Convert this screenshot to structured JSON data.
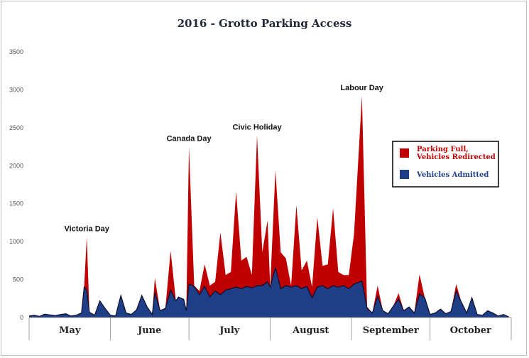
{
  "colors": {
    "full": "#C00000",
    "admitted": "#1F3E88",
    "outline": "#0c0c2a"
  },
  "chart_data": {
    "type": "area",
    "title": "2016 - Grotto Parking Access",
    "xlabel": "",
    "ylabel": "",
    "ylim": [
      0,
      3500
    ],
    "y_ticks": [
      0,
      500,
      1000,
      1500,
      2000,
      2500,
      3000,
      3500
    ],
    "grid": false,
    "legend_position": "right",
    "x_start": "2016-05-01",
    "x_end": "2016-10-31",
    "months": [
      "May",
      "June",
      "July",
      "August",
      "September",
      "October"
    ],
    "series": [
      {
        "name": "Vehicles Admitted",
        "color": "#1F3E88",
        "points": [
          [
            "2016-05-01",
            20
          ],
          [
            "2016-05-03",
            30
          ],
          [
            "2016-05-05",
            15
          ],
          [
            "2016-05-07",
            45
          ],
          [
            "2016-05-09",
            35
          ],
          [
            "2016-05-11",
            25
          ],
          [
            "2016-05-13",
            40
          ],
          [
            "2016-05-15",
            50
          ],
          [
            "2016-05-17",
            20
          ],
          [
            "2016-05-19",
            30
          ],
          [
            "2016-05-21",
            60
          ],
          [
            "2016-05-22",
            400
          ],
          [
            "2016-05-23",
            360
          ],
          [
            "2016-05-24",
            70
          ],
          [
            "2016-05-26",
            30
          ],
          [
            "2016-05-28",
            220
          ],
          [
            "2016-05-30",
            120
          ],
          [
            "2016-06-01",
            30
          ],
          [
            "2016-06-03",
            20
          ],
          [
            "2016-06-05",
            290
          ],
          [
            "2016-06-07",
            60
          ],
          [
            "2016-06-09",
            40
          ],
          [
            "2016-06-11",
            100
          ],
          [
            "2016-06-13",
            290
          ],
          [
            "2016-06-15",
            140
          ],
          [
            "2016-06-17",
            40
          ],
          [
            "2016-06-18",
            330
          ],
          [
            "2016-06-20",
            90
          ],
          [
            "2016-06-22",
            120
          ],
          [
            "2016-06-24",
            360
          ],
          [
            "2016-06-26",
            220
          ],
          [
            "2016-06-27",
            270
          ],
          [
            "2016-06-29",
            240
          ],
          [
            "2016-06-30",
            90
          ],
          [
            "2016-07-01",
            440
          ],
          [
            "2016-07-03",
            410
          ],
          [
            "2016-07-05",
            300
          ],
          [
            "2016-07-07",
            410
          ],
          [
            "2016-07-09",
            270
          ],
          [
            "2016-07-11",
            350
          ],
          [
            "2016-07-13",
            300
          ],
          [
            "2016-07-15",
            360
          ],
          [
            "2016-07-17",
            380
          ],
          [
            "2016-07-19",
            400
          ],
          [
            "2016-07-21",
            380
          ],
          [
            "2016-07-23",
            410
          ],
          [
            "2016-07-25",
            390
          ],
          [
            "2016-07-27",
            420
          ],
          [
            "2016-07-29",
            420
          ],
          [
            "2016-07-31",
            470
          ],
          [
            "2016-08-01",
            400
          ],
          [
            "2016-08-03",
            660
          ],
          [
            "2016-08-05",
            380
          ],
          [
            "2016-08-07",
            420
          ],
          [
            "2016-08-09",
            400
          ],
          [
            "2016-08-11",
            420
          ],
          [
            "2016-08-13",
            380
          ],
          [
            "2016-08-15",
            410
          ],
          [
            "2016-08-17",
            260
          ],
          [
            "2016-08-19",
            400
          ],
          [
            "2016-08-21",
            420
          ],
          [
            "2016-08-23",
            380
          ],
          [
            "2016-08-25",
            420
          ],
          [
            "2016-08-27",
            400
          ],
          [
            "2016-08-29",
            420
          ],
          [
            "2016-08-31",
            380
          ],
          [
            "2016-09-02",
            440
          ],
          [
            "2016-09-05",
            480
          ],
          [
            "2016-09-07",
            120
          ],
          [
            "2016-09-09",
            60
          ],
          [
            "2016-09-11",
            280
          ],
          [
            "2016-09-13",
            90
          ],
          [
            "2016-09-15",
            50
          ],
          [
            "2016-09-17",
            150
          ],
          [
            "2016-09-19",
            240
          ],
          [
            "2016-09-21",
            90
          ],
          [
            "2016-09-23",
            140
          ],
          [
            "2016-09-25",
            60
          ],
          [
            "2016-09-27",
            310
          ],
          [
            "2016-09-29",
            260
          ],
          [
            "2016-10-01",
            40
          ],
          [
            "2016-10-03",
            60
          ],
          [
            "2016-10-05",
            110
          ],
          [
            "2016-10-07",
            50
          ],
          [
            "2016-10-09",
            80
          ],
          [
            "2016-10-11",
            350
          ],
          [
            "2016-10-13",
            200
          ],
          [
            "2016-10-15",
            60
          ],
          [
            "2016-10-17",
            260
          ],
          [
            "2016-10-19",
            40
          ],
          [
            "2016-10-21",
            30
          ],
          [
            "2016-10-23",
            90
          ],
          [
            "2016-10-25",
            60
          ],
          [
            "2016-10-27",
            20
          ],
          [
            "2016-10-29",
            40
          ],
          [
            "2016-10-31",
            10
          ]
        ]
      },
      {
        "name": "Parking Full, Vehicles Redirected",
        "color": "#C00000",
        "points": [
          [
            "2016-05-01",
            20
          ],
          [
            "2016-05-03",
            30
          ],
          [
            "2016-05-05",
            15
          ],
          [
            "2016-05-07",
            45
          ],
          [
            "2016-05-09",
            35
          ],
          [
            "2016-05-11",
            25
          ],
          [
            "2016-05-13",
            40
          ],
          [
            "2016-05-15",
            50
          ],
          [
            "2016-05-17",
            20
          ],
          [
            "2016-05-19",
            30
          ],
          [
            "2016-05-21",
            60
          ],
          [
            "2016-05-22",
            400
          ],
          [
            "2016-05-23",
            1060
          ],
          [
            "2016-05-24",
            70
          ],
          [
            "2016-05-26",
            30
          ],
          [
            "2016-05-28",
            220
          ],
          [
            "2016-05-30",
            120
          ],
          [
            "2016-06-01",
            30
          ],
          [
            "2016-06-03",
            20
          ],
          [
            "2016-06-05",
            290
          ],
          [
            "2016-06-07",
            60
          ],
          [
            "2016-06-09",
            40
          ],
          [
            "2016-06-11",
            100
          ],
          [
            "2016-06-13",
            290
          ],
          [
            "2016-06-15",
            140
          ],
          [
            "2016-06-17",
            40
          ],
          [
            "2016-06-18",
            520
          ],
          [
            "2016-06-20",
            90
          ],
          [
            "2016-06-22",
            120
          ],
          [
            "2016-06-24",
            880
          ],
          [
            "2016-06-26",
            220
          ],
          [
            "2016-06-27",
            270
          ],
          [
            "2016-06-29",
            240
          ],
          [
            "2016-06-30",
            90
          ],
          [
            "2016-07-01",
            2250
          ],
          [
            "2016-07-03",
            420
          ],
          [
            "2016-07-05",
            350
          ],
          [
            "2016-07-07",
            700
          ],
          [
            "2016-07-09",
            420
          ],
          [
            "2016-07-11",
            470
          ],
          [
            "2016-07-13",
            1120
          ],
          [
            "2016-07-15",
            560
          ],
          [
            "2016-07-17",
            600
          ],
          [
            "2016-07-19",
            1660
          ],
          [
            "2016-07-21",
            750
          ],
          [
            "2016-07-23",
            800
          ],
          [
            "2016-07-25",
            560
          ],
          [
            "2016-07-27",
            2400
          ],
          [
            "2016-07-29",
            860
          ],
          [
            "2016-07-31",
            1280
          ],
          [
            "2016-08-01",
            400
          ],
          [
            "2016-08-03",
            1940
          ],
          [
            "2016-08-05",
            860
          ],
          [
            "2016-08-07",
            780
          ],
          [
            "2016-08-09",
            420
          ],
          [
            "2016-08-11",
            1480
          ],
          [
            "2016-08-13",
            620
          ],
          [
            "2016-08-15",
            750
          ],
          [
            "2016-08-17",
            400
          ],
          [
            "2016-08-19",
            1320
          ],
          [
            "2016-08-21",
            680
          ],
          [
            "2016-08-23",
            700
          ],
          [
            "2016-08-25",
            1440
          ],
          [
            "2016-08-27",
            600
          ],
          [
            "2016-08-29",
            560
          ],
          [
            "2016-08-31",
            560
          ],
          [
            "2016-09-02",
            1100
          ],
          [
            "2016-09-05",
            2920
          ],
          [
            "2016-09-07",
            140
          ],
          [
            "2016-09-09",
            60
          ],
          [
            "2016-09-11",
            420
          ],
          [
            "2016-09-13",
            90
          ],
          [
            "2016-09-15",
            50
          ],
          [
            "2016-09-17",
            150
          ],
          [
            "2016-09-19",
            320
          ],
          [
            "2016-09-21",
            90
          ],
          [
            "2016-09-23",
            140
          ],
          [
            "2016-09-25",
            60
          ],
          [
            "2016-09-27",
            570
          ],
          [
            "2016-09-29",
            260
          ],
          [
            "2016-10-01",
            40
          ],
          [
            "2016-10-03",
            60
          ],
          [
            "2016-10-05",
            110
          ],
          [
            "2016-10-07",
            50
          ],
          [
            "2016-10-09",
            80
          ],
          [
            "2016-10-11",
            440
          ],
          [
            "2016-10-13",
            200
          ],
          [
            "2016-10-15",
            60
          ],
          [
            "2016-10-17",
            260
          ],
          [
            "2016-10-19",
            40
          ],
          [
            "2016-10-21",
            30
          ],
          [
            "2016-10-23",
            90
          ],
          [
            "2016-10-25",
            60
          ],
          [
            "2016-10-27",
            20
          ],
          [
            "2016-10-29",
            40
          ],
          [
            "2016-10-31",
            10
          ]
        ]
      }
    ],
    "annotations": [
      {
        "text": "Victoria Day",
        "date": "2016-05-23",
        "value": 1060
      },
      {
        "text": "Canada Day",
        "date": "2016-07-01",
        "value": 2250
      },
      {
        "text": "Civic Holiday",
        "date": "2016-07-27",
        "value": 2400
      },
      {
        "text": "Labour Day",
        "date": "2016-09-05",
        "value": 2920
      }
    ],
    "legend": [
      {
        "label_lines": [
          "Parking Full,",
          "Vehicles Redirected"
        ],
        "color": "#C00000"
      },
      {
        "label_lines": [
          "Vehicles Admitted"
        ],
        "color": "#1F3E88"
      }
    ]
  }
}
